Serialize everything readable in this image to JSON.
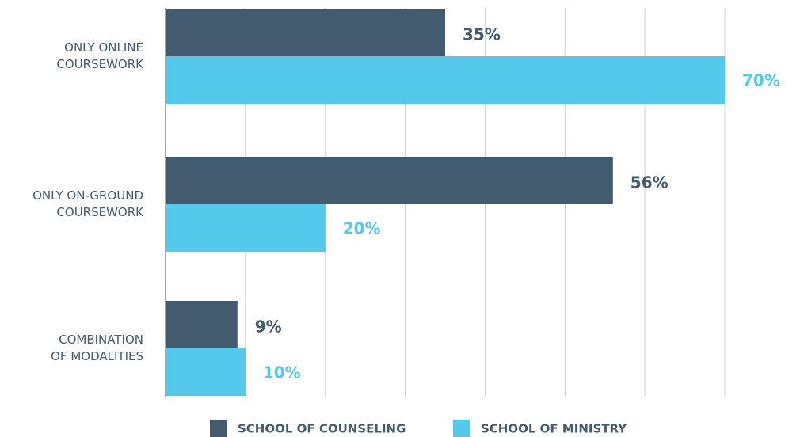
{
  "chart_data": {
    "type": "bar",
    "orientation": "horizontal",
    "categories": [
      "ONLY ONLINE\nCOURSEWORK",
      "ONLY ON-GROUND\nCOURSEWORK",
      "COMBINATION\nOF MODALITIES"
    ],
    "series": [
      {
        "name": "SCHOOL OF COUNSELING",
        "color": "#435b6e",
        "values": [
          35,
          56,
          9
        ],
        "value_labels": [
          "35%",
          "56%",
          "9%"
        ]
      },
      {
        "name": "SCHOOL OF MINISTRY",
        "color": "#55c9ec",
        "values": [
          70,
          20,
          10
        ],
        "value_labels": [
          "70%",
          "20%",
          "10%"
        ]
      }
    ],
    "xlim": [
      0,
      70
    ],
    "xticks": [
      0,
      10,
      20,
      30,
      40,
      50,
      60,
      70
    ],
    "grid": true,
    "legend": "bottom"
  }
}
